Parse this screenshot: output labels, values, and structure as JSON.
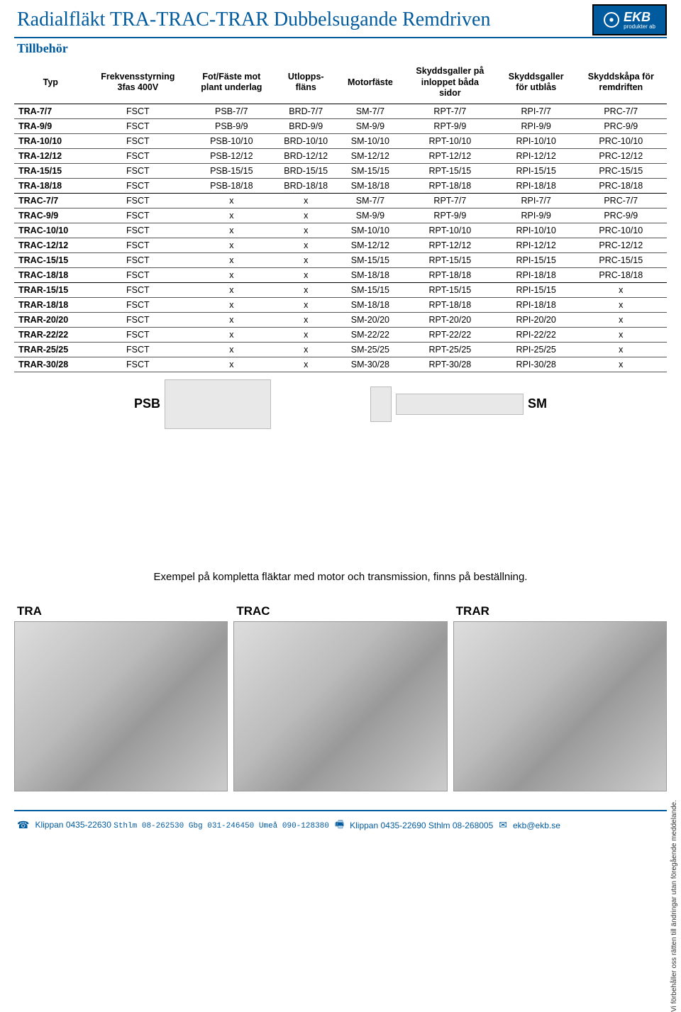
{
  "header": {
    "title": "Radialfläkt TRA-TRAC-TRAR Dubbelsugande Remdriven",
    "logo_text": "EKB",
    "logo_sub": "produkter ab"
  },
  "subheader": "Tillbehör",
  "table": {
    "columns": [
      "Typ",
      "Frekvensstyrning 3fas 400V",
      "Fot/Fäste mot plant underlag",
      "Utlopps-fläns",
      "Motorfäste",
      "Skyddsgaller på inloppet båda sidor",
      "Skyddsgaller för utblås",
      "Skyddskåpa för remdriften"
    ],
    "rows": [
      [
        "TRA-7/7",
        "FSCT",
        "PSB-7/7",
        "BRD-7/7",
        "SM-7/7",
        "RPT-7/7",
        "RPI-7/7",
        "PRC-7/7"
      ],
      [
        "TRA-9/9",
        "FSCT",
        "PSB-9/9",
        "BRD-9/9",
        "SM-9/9",
        "RPT-9/9",
        "RPI-9/9",
        "PRC-9/9"
      ],
      [
        "TRA-10/10",
        "FSCT",
        "PSB-10/10",
        "BRD-10/10",
        "SM-10/10",
        "RPT-10/10",
        "RPI-10/10",
        "PRC-10/10"
      ],
      [
        "TRA-12/12",
        "FSCT",
        "PSB-12/12",
        "BRD-12/12",
        "SM-12/12",
        "RPT-12/12",
        "RPI-12/12",
        "PRC-12/12"
      ],
      [
        "TRA-15/15",
        "FSCT",
        "PSB-15/15",
        "BRD-15/15",
        "SM-15/15",
        "RPT-15/15",
        "RPI-15/15",
        "PRC-15/15"
      ],
      [
        "TRA-18/18",
        "FSCT",
        "PSB-18/18",
        "BRD-18/18",
        "SM-18/18",
        "RPT-18/18",
        "RPI-18/18",
        "PRC-18/18"
      ],
      [
        "TRAC-7/7",
        "FSCT",
        "x",
        "x",
        "SM-7/7",
        "RPT-7/7",
        "RPI-7/7",
        "PRC-7/7"
      ],
      [
        "TRAC-9/9",
        "FSCT",
        "x",
        "x",
        "SM-9/9",
        "RPT-9/9",
        "RPI-9/9",
        "PRC-9/9"
      ],
      [
        "TRAC-10/10",
        "FSCT",
        "x",
        "x",
        "SM-10/10",
        "RPT-10/10",
        "RPI-10/10",
        "PRC-10/10"
      ],
      [
        "TRAC-12/12",
        "FSCT",
        "x",
        "x",
        "SM-12/12",
        "RPT-12/12",
        "RPI-12/12",
        "PRC-12/12"
      ],
      [
        "TRAC-15/15",
        "FSCT",
        "x",
        "x",
        "SM-15/15",
        "RPT-15/15",
        "RPI-15/15",
        "PRC-15/15"
      ],
      [
        "TRAC-18/18",
        "FSCT",
        "x",
        "x",
        "SM-18/18",
        "RPT-18/18",
        "RPI-18/18",
        "PRC-18/18"
      ],
      [
        "TRAR-15/15",
        "FSCT",
        "x",
        "x",
        "SM-15/15",
        "RPT-15/15",
        "RPI-15/15",
        "x"
      ],
      [
        "TRAR-18/18",
        "FSCT",
        "x",
        "x",
        "SM-18/18",
        "RPT-18/18",
        "RPI-18/18",
        "x"
      ],
      [
        "TRAR-20/20",
        "FSCT",
        "x",
        "x",
        "SM-20/20",
        "RPT-20/20",
        "RPI-20/20",
        "x"
      ],
      [
        "TRAR-22/22",
        "FSCT",
        "x",
        "x",
        "SM-22/22",
        "RPT-22/22",
        "RPI-22/22",
        "x"
      ],
      [
        "TRAR-25/25",
        "FSCT",
        "x",
        "x",
        "SM-25/25",
        "RPT-25/25",
        "RPI-25/25",
        "x"
      ],
      [
        "TRAR-30/28",
        "FSCT",
        "x",
        "x",
        "SM-30/28",
        "RPT-30/28",
        "RPI-30/28",
        "x"
      ]
    ],
    "bold_divider_after": [
      5,
      11
    ]
  },
  "part_labels": {
    "psb": "PSB",
    "sm": "SM"
  },
  "example_text": "Exempel på kompletta fläktar med motor och transmission, finns på beställning.",
  "fan_labels": [
    "TRA",
    "TRAC",
    "TRAR"
  ],
  "side_note": "Vi förbehåller oss rätten till ändringar utan föregående meddelande.",
  "footer": {
    "phone_icon": "☎",
    "fax_icon": "🖷",
    "mail_icon": "✉",
    "line1_main": "Klippan 0435-22630",
    "line1_sub": "Sthlm 08-262530 Gbg 031-246450 Umeå 090-128380",
    "line2_main": "Klippan 0435-22690 Sthlm 08-268005",
    "email": "ekb@ekb.se"
  },
  "colors": {
    "brand_blue": "#005a9e",
    "text": "#000000",
    "border": "#555555"
  }
}
